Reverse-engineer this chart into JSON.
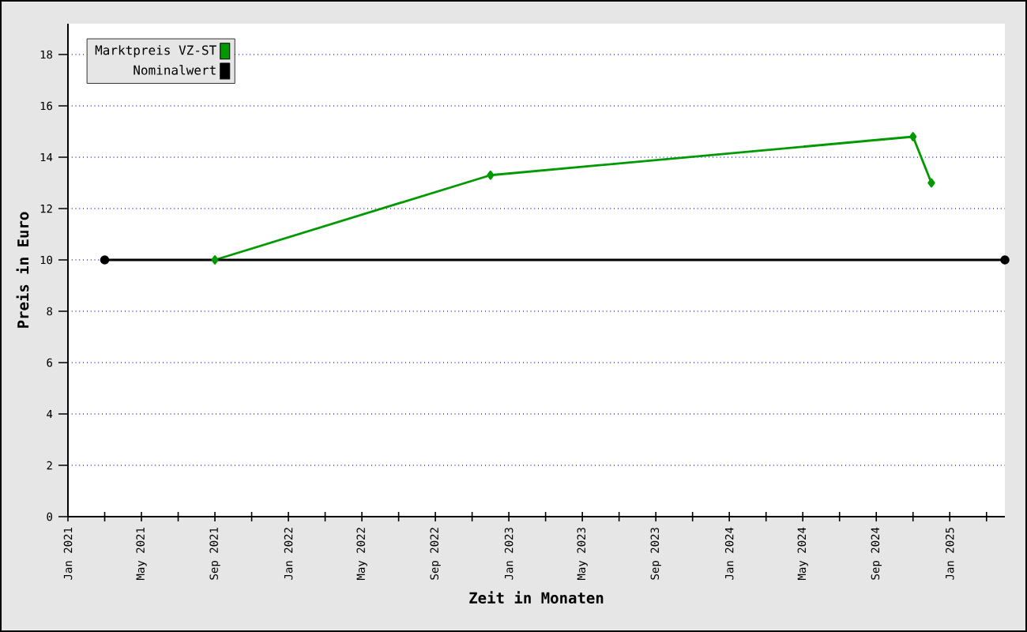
{
  "chart_data": {
    "type": "line",
    "xlabel": "Zeit in Monaten",
    "ylabel": "Preis in Euro",
    "series": [
      {
        "name": "Marktpreis VZ-ST",
        "color": "#009900",
        "marker": "diamond",
        "x": [
          "2021-09",
          "2022-12",
          "2024-11",
          "2024-12"
        ],
        "values": [
          10,
          13.3,
          14.8,
          13.0
        ]
      },
      {
        "name": "Nominalwert",
        "color": "#000000",
        "marker": "circle",
        "x": [
          "2021-03",
          "2025-04"
        ],
        "values": [
          10,
          10
        ]
      }
    ],
    "xlim": [
      "2021-01",
      "2025-04"
    ],
    "xticks": [
      {
        "value": "2021-01",
        "label": "Jan 2021"
      },
      {
        "value": "2021-03",
        "label": null
      },
      {
        "value": "2021-05",
        "label": "May 2021"
      },
      {
        "value": "2021-07",
        "label": null
      },
      {
        "value": "2021-09",
        "label": "Sep 2021"
      },
      {
        "value": "2021-11",
        "label": null
      },
      {
        "value": "2022-01",
        "label": "Jan 2022"
      },
      {
        "value": "2022-03",
        "label": null
      },
      {
        "value": "2022-05",
        "label": "May 2022"
      },
      {
        "value": "2022-07",
        "label": null
      },
      {
        "value": "2022-09",
        "label": "Sep 2022"
      },
      {
        "value": "2022-11",
        "label": null
      },
      {
        "value": "2023-01",
        "label": "Jan 2023"
      },
      {
        "value": "2023-03",
        "label": null
      },
      {
        "value": "2023-05",
        "label": "May 2023"
      },
      {
        "value": "2023-07",
        "label": null
      },
      {
        "value": "2023-09",
        "label": "Sep 2023"
      },
      {
        "value": "2023-11",
        "label": null
      },
      {
        "value": "2024-01",
        "label": "Jan 2024"
      },
      {
        "value": "2024-03",
        "label": null
      },
      {
        "value": "2024-05",
        "label": "May 2024"
      },
      {
        "value": "2024-07",
        "label": null
      },
      {
        "value": "2024-09",
        "label": "Sep 2024"
      },
      {
        "value": "2024-11",
        "label": null
      },
      {
        "value": "2025-01",
        "label": "Jan 2025"
      },
      {
        "value": "2025-03",
        "label": null
      }
    ],
    "ylim": [
      0,
      19.2
    ],
    "yticks": [
      0,
      2,
      4,
      6,
      8,
      10,
      12,
      14,
      16,
      18
    ],
    "grid": "y",
    "legend": "top left",
    "line_style": "solid"
  }
}
